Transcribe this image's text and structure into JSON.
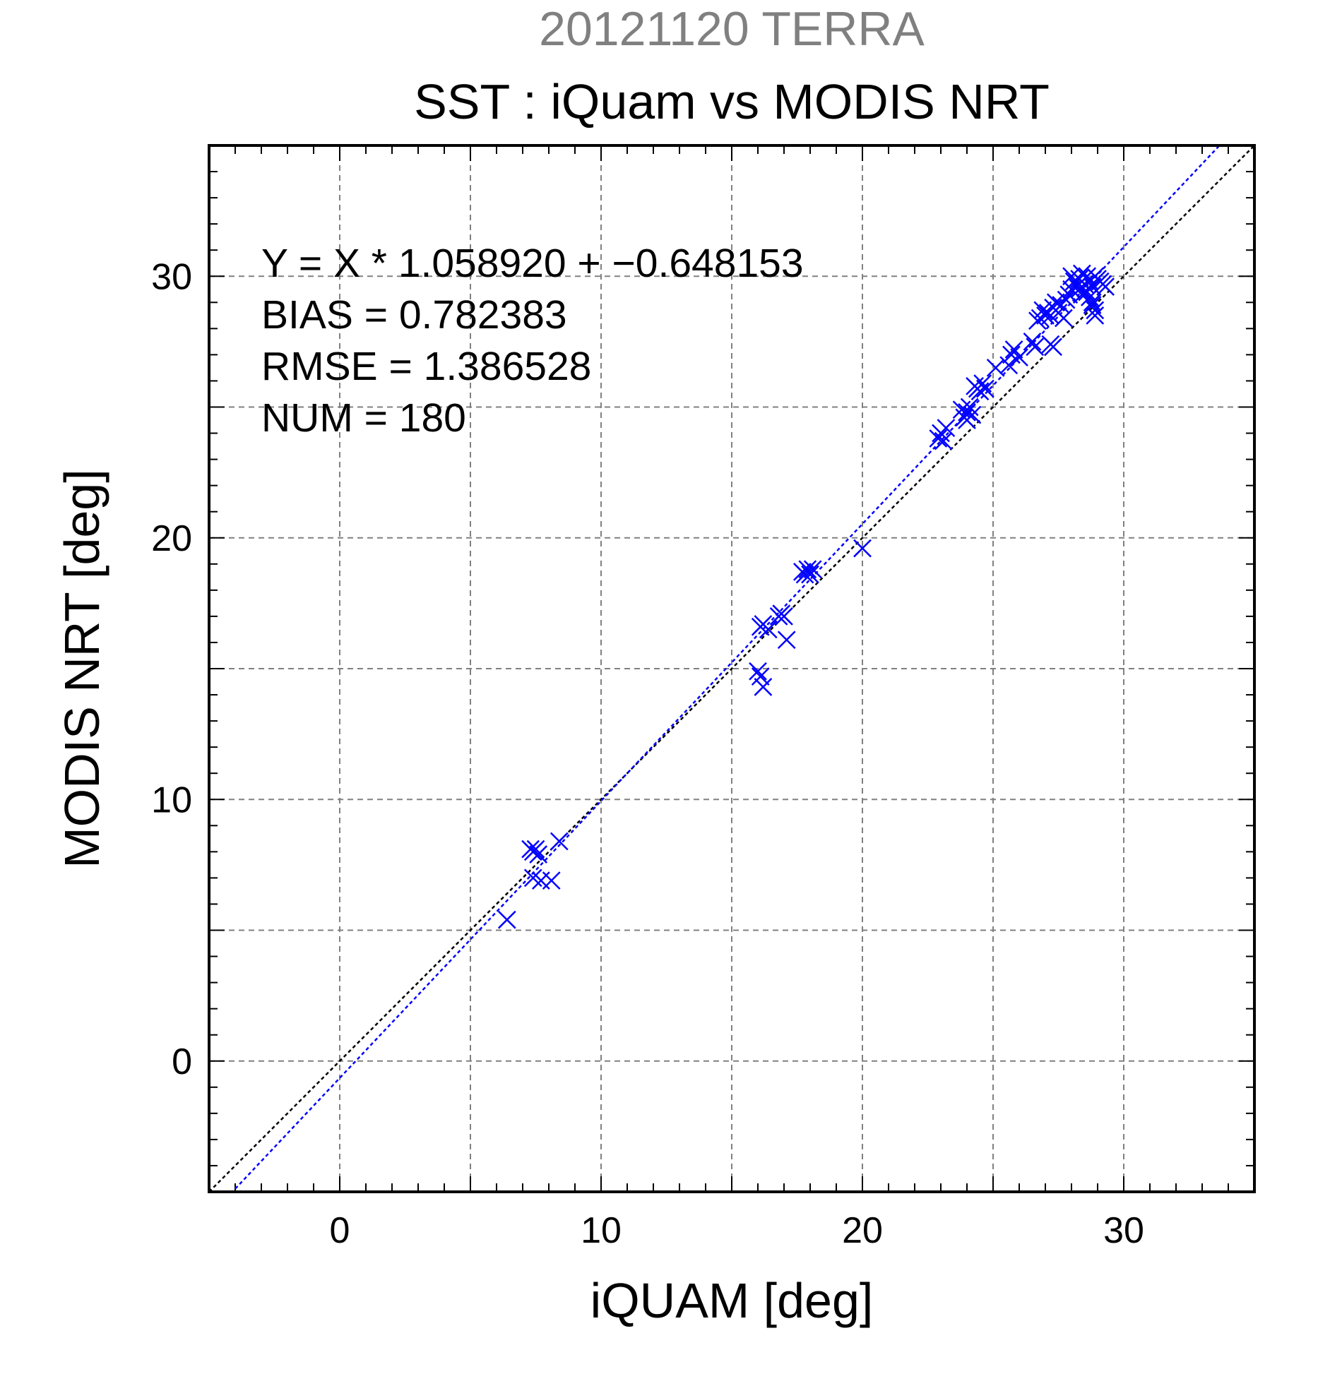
{
  "chart_data": {
    "type": "scatter",
    "subtitle": "20121120 TERRA",
    "title": "SST : iQuam vs MODIS NRT",
    "xlabel": "iQUAM [deg]",
    "ylabel": "MODIS NRT [deg]",
    "xlim": [
      -5,
      35
    ],
    "ylim": [
      -5,
      35
    ],
    "xticks": [
      0,
      10,
      20,
      30
    ],
    "yticks": [
      0,
      10,
      20,
      30
    ],
    "grid_step": 5,
    "minor_step": 1,
    "grid": true,
    "colors": {
      "points": "#0000ff",
      "fit_line": "#0000ff",
      "identity_line": "#000000",
      "subtitle": "#808080"
    },
    "marker": "x",
    "stats": {
      "equation": "Y = X * 1.058920 + −0.648153",
      "bias": "BIAS = 0.782383",
      "rmse": "RMSE = 1.386528",
      "num": "NUM = 180"
    },
    "lines": [
      {
        "kind": "identity",
        "slope": 1.0,
        "intercept": 0.0
      },
      {
        "kind": "fit",
        "slope": 1.05892,
        "intercept": -0.648153
      }
    ],
    "series": [
      {
        "points": [
          [
            6.4,
            5.4
          ],
          [
            7.3,
            8.1
          ],
          [
            7.4,
            8.0
          ],
          [
            7.5,
            8.1
          ],
          [
            7.6,
            7.9
          ],
          [
            7.4,
            7.0
          ],
          [
            7.7,
            6.9
          ],
          [
            8.1,
            6.9
          ],
          [
            8.4,
            8.4
          ],
          [
            16.0,
            14.9
          ],
          [
            16.1,
            14.7
          ],
          [
            16.2,
            14.3
          ],
          [
            16.1,
            16.6
          ],
          [
            16.2,
            16.7
          ],
          [
            16.4,
            16.5
          ],
          [
            16.8,
            17.0
          ],
          [
            16.9,
            17.1
          ],
          [
            17.0,
            17.0
          ],
          [
            17.1,
            16.1
          ],
          [
            17.7,
            18.7
          ],
          [
            17.8,
            18.6
          ],
          [
            17.9,
            18.8
          ],
          [
            18.0,
            18.6
          ],
          [
            18.1,
            18.8
          ],
          [
            20.0,
            19.6
          ],
          [
            22.9,
            23.8
          ],
          [
            23.0,
            24.0
          ],
          [
            23.1,
            23.7
          ],
          [
            23.2,
            24.2
          ],
          [
            23.8,
            24.9
          ],
          [
            23.9,
            24.6
          ],
          [
            24.0,
            24.5
          ],
          [
            24.1,
            25.0
          ],
          [
            24.2,
            24.7
          ],
          [
            24.0,
            24.8
          ],
          [
            24.3,
            25.8
          ],
          [
            24.4,
            25.7
          ],
          [
            24.5,
            25.6
          ],
          [
            24.6,
            25.9
          ],
          [
            24.7,
            25.7
          ],
          [
            25.1,
            26.5
          ],
          [
            25.6,
            26.6
          ],
          [
            25.7,
            27.0
          ],
          [
            25.8,
            27.2
          ],
          [
            26.0,
            26.9
          ],
          [
            26.5,
            27.5
          ],
          [
            26.6,
            27.3
          ],
          [
            26.7,
            28.3
          ],
          [
            26.8,
            28.4
          ],
          [
            26.9,
            28.7
          ],
          [
            27.0,
            28.5
          ],
          [
            27.1,
            28.6
          ],
          [
            27.2,
            28.5
          ],
          [
            27.3,
            28.8
          ],
          [
            27.4,
            29.0
          ],
          [
            27.2,
            27.4
          ],
          [
            27.3,
            27.3
          ],
          [
            27.5,
            28.6
          ],
          [
            27.6,
            28.9
          ],
          [
            27.7,
            28.4
          ],
          [
            27.8,
            29.1
          ],
          [
            27.9,
            29.3
          ],
          [
            28.0,
            29.5
          ],
          [
            28.0,
            30.0
          ],
          [
            28.1,
            29.8
          ],
          [
            28.2,
            29.6
          ],
          [
            28.3,
            29.9
          ],
          [
            28.4,
            30.1
          ],
          [
            28.5,
            29.7
          ],
          [
            28.6,
            30.0
          ],
          [
            28.7,
            29.8
          ],
          [
            28.8,
            29.6
          ],
          [
            28.9,
            30.0
          ],
          [
            29.0,
            29.9
          ],
          [
            29.1,
            29.8
          ],
          [
            29.2,
            29.7
          ],
          [
            29.3,
            29.6
          ],
          [
            28.7,
            29.2
          ],
          [
            28.8,
            29.0
          ],
          [
            28.9,
            28.7
          ],
          [
            28.9,
            28.5
          ],
          [
            28.8,
            28.9
          ],
          [
            28.6,
            29.4
          ],
          [
            28.4,
            29.3
          ],
          [
            28.3,
            29.5
          ]
        ]
      }
    ]
  }
}
